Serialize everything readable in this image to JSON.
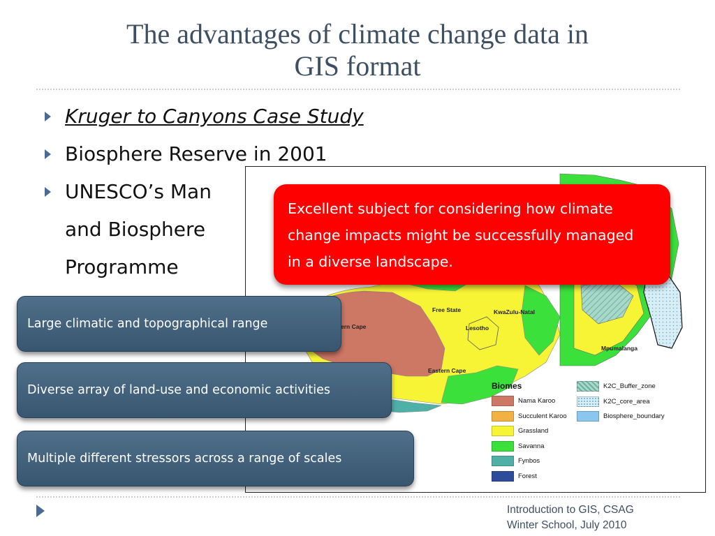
{
  "title": {
    "line1": "The advantages of climate change data in",
    "line2": "GIS format"
  },
  "bullets": {
    "item1": "Kruger to Canyons Case Study",
    "item2": "Biosphere Reserve in 2001",
    "item3_line1": "UNESCO’s Man",
    "item3_line2": "and Biosphere",
    "item3_line3": "Programme"
  },
  "callout": {
    "line1": "Excellent subject for considering how climate",
    "line2": "change impacts might be successfully managed",
    "line3": "in a diverse landscape."
  },
  "boxes": [
    "Large climatic and topographical range",
    "Diverse array of land-use and economic activities",
    "Multiple different stressors across a range of scales"
  ],
  "map": {
    "provinces": {
      "free_state": "Free State",
      "kwazulu_natal": "KwaZulu-Natal",
      "lesotho": "Lesotho",
      "eastern_cape": "Eastern Cape",
      "northern_cape": "thern Cape",
      "mpumalanga": "Mpumalanga"
    },
    "legend_title": "Biomes",
    "biomes": [
      {
        "label": "Nama Karoo",
        "color": "#cd7765"
      },
      {
        "label": "Succulent Karoo",
        "color": "#f1b143"
      },
      {
        "label": "Grassland",
        "color": "#f7f435"
      },
      {
        "label": "Savanna",
        "color": "#3be03b"
      },
      {
        "label": "Fynbos",
        "color": "#4fb0a8"
      },
      {
        "label": "Forest",
        "color": "#2d4c9a"
      }
    ],
    "zones": [
      {
        "label": "K2C_Buffer_zone",
        "color": "#a8d8c8"
      },
      {
        "label": "K2C_core_area",
        "color": "#d8eef6"
      },
      {
        "label": "Biosphere_boundary",
        "color": "#8ac6ee"
      }
    ]
  },
  "footer": {
    "line1": "Introduction to GIS, CSAG",
    "line2": "Winter School, July 2010"
  },
  "colors": {
    "title": "#3d4f63",
    "accent_bullet": "#4a6a92",
    "callout_red": "#ff0000",
    "box_blue": "#445f79"
  }
}
